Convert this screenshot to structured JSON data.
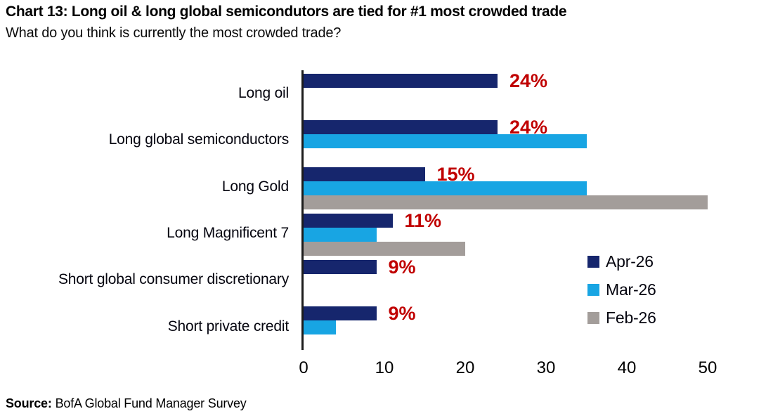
{
  "header": {
    "title": "Chart 13: Long oil & long global semicondutors are tied for #1 most crowded trade",
    "subtitle": "What do you think is currently the most crowded trade?"
  },
  "source": {
    "label": "Source:",
    "text": "BofA Global Fund Manager Survey"
  },
  "colors": {
    "navy": "#16266d",
    "light_blue": "#18a5e3",
    "gray": "#a39d9a",
    "data_label_red": "#c00000",
    "axis": "#1c1c1c"
  },
  "chart_data": {
    "type": "bar",
    "orientation": "horizontal",
    "title": "What do you think is currently the most crowded trade?",
    "xlabel": "",
    "ylabel": "",
    "xlim": [
      0,
      50
    ],
    "x_ticks": [
      0,
      10,
      20,
      30,
      40,
      50
    ],
    "grid": false,
    "legend_position": "inside-right",
    "categories": [
      "Long oil",
      "Long global semiconductors",
      "Long Gold",
      "Long Magnificent 7",
      "Short global consumer discretionary",
      "Short private credit"
    ],
    "series": [
      {
        "name": "Apr-26",
        "color": "#16266d",
        "values": [
          24,
          24,
          15,
          11,
          9,
          9
        ]
      },
      {
        "name": "Mar-26",
        "color": "#18a5e3",
        "values": [
          0,
          35,
          35,
          9,
          0,
          4
        ]
      },
      {
        "name": "Feb-26",
        "color": "#a39d9a",
        "values": [
          0,
          0,
          50,
          20,
          0,
          0
        ]
      }
    ],
    "data_labels": {
      "series": "Apr-26",
      "color": "#c00000",
      "values": [
        "24%",
        "24%",
        "15%",
        "11%",
        "9%",
        "9%"
      ]
    }
  }
}
